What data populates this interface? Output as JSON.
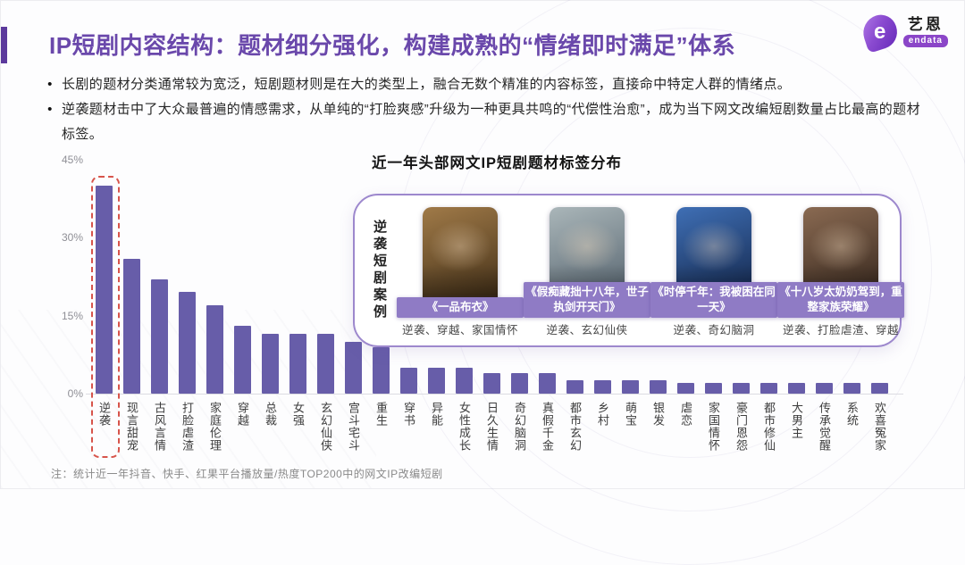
{
  "header": {
    "title": "IP短剧内容结构：题材细分强化，构建成熟的“情绪即时满足”体系",
    "logo": {
      "icon": "endata-logo-icon",
      "glyph": "e",
      "brand_cn": "艺恩",
      "brand_en": "endata"
    }
  },
  "bullets": [
    "长剧的题材分类通常较为宽泛，短剧题材则是在大的类型上，融合无数个精准的内容标签，直接命中特定人群的情绪点。",
    "逆袭题材击中了大众最普遍的情感需求，从单纯的“打脸爽感”升级为一种更具共鸣的“代偿性治愈”，成为当下网文改编短剧数量占比最高的题材标签。"
  ],
  "chart_data": {
    "type": "bar",
    "title": "近一年头部网文IP短剧题材标签分布",
    "categories": [
      "逆袭",
      "现言甜宠",
      "古风言情",
      "打脸虐渣",
      "家庭伦理",
      "穿越",
      "总裁",
      "女强",
      "玄幻仙侠",
      "宫斗宅斗",
      "重生",
      "穿书",
      "异能",
      "女性成长",
      "日久生情",
      "奇幻脑洞",
      "真假千金",
      "都市玄幻",
      "乡村",
      "萌宝",
      "银发",
      "虐恋",
      "家国情怀",
      "豪门恩怨",
      "都市修仙",
      "大男主",
      "传承觉醒",
      "系统",
      "欢喜冤家"
    ],
    "values": [
      40,
      26,
      22,
      19.5,
      17,
      13,
      11.5,
      11.5,
      11.5,
      10,
      9,
      5,
      5,
      5,
      4,
      4,
      4,
      2.5,
      2.5,
      2.5,
      2.5,
      2,
      2,
      2,
      2,
      2,
      2,
      2,
      2
    ],
    "unit": "%",
    "ylim": [
      0,
      45
    ],
    "yticks": [
      {
        "label": "45%",
        "value": 45
      },
      {
        "label": "30%",
        "value": 30
      },
      {
        "label": "15%",
        "value": 15
      },
      {
        "label": "0%",
        "value": 0
      }
    ],
    "grid": false,
    "bar_color": "#675da9",
    "highlight": {
      "category": "逆袭",
      "index": 0,
      "style": "red-dashed-box",
      "color": "#d7544b"
    }
  },
  "case_panel": {
    "side_label": "逆袭短剧案例",
    "cases": [
      {
        "title": "《一品布衣》",
        "tags": "逆袭、穿越、家国情怀",
        "poster": "poster-costume-sword-drama",
        "poster_colors": [
          "#a07a48",
          "#3c2a14"
        ]
      },
      {
        "title": "《假痴藏拙十八年，世子执剑开天门》",
        "tags": "逆袭、玄幻仙侠",
        "poster": "poster-xianxia-drama",
        "poster_colors": [
          "#aab6b9",
          "#4e5c68"
        ]
      },
      {
        "title": "《时停千年：我被困在同一天》",
        "tags": "逆袭、奇幻脑洞",
        "poster": "poster-time-loop-drama",
        "poster_colors": [
          "#3f6fb5",
          "#0f1f40"
        ]
      },
      {
        "title": "《十八岁太奶奶驾到，重整家族荣耀》",
        "tags": "逆袭、打脸虐渣、穿越",
        "poster": "poster-family-drama",
        "poster_colors": [
          "#8a6a52",
          "#2c1f17"
        ]
      }
    ]
  },
  "footnote": "注：统计近一年抖音、快手、红果平台播放量/热度TOP200中的网文IP改编短剧",
  "colors": {
    "accent_purple": "#6a48ab",
    "bar_purple": "#675da9",
    "label_bar_purple": "#8f7bc5",
    "panel_border": "#9d88cd",
    "highlight_red": "#d7544b"
  }
}
